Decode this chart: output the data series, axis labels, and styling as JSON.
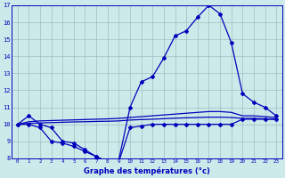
{
  "hours": [
    0,
    1,
    2,
    3,
    4,
    5,
    6,
    7,
    8,
    9,
    10,
    11,
    12,
    13,
    14,
    15,
    16,
    17,
    18,
    19,
    20,
    21,
    22,
    23
  ],
  "temp_actual": [
    10.0,
    10.5,
    10.0,
    9.8,
    9.0,
    8.9,
    8.5,
    8.1,
    7.8,
    7.9,
    11.0,
    12.5,
    12.8,
    13.9,
    15.2,
    15.5,
    16.3,
    17.0,
    16.5,
    14.8,
    11.8,
    11.3,
    11.0,
    10.5
  ],
  "temp_min": [
    10.0,
    10.0,
    9.8,
    9.0,
    8.9,
    8.7,
    8.4,
    8.1,
    7.8,
    7.8,
    9.8,
    9.9,
    10.0,
    10.0,
    10.0,
    10.0,
    10.0,
    10.0,
    10.0,
    10.0,
    10.3,
    10.3,
    10.3,
    10.3
  ],
  "trend_upper": [
    10.0,
    10.15,
    10.2,
    10.22,
    10.24,
    10.26,
    10.28,
    10.3,
    10.32,
    10.35,
    10.4,
    10.45,
    10.5,
    10.55,
    10.6,
    10.65,
    10.7,
    10.75,
    10.75,
    10.7,
    10.5,
    10.5,
    10.45,
    10.4
  ],
  "trend_lower": [
    10.0,
    10.05,
    10.08,
    10.1,
    10.12,
    10.14,
    10.15,
    10.17,
    10.18,
    10.2,
    10.25,
    10.28,
    10.3,
    10.33,
    10.36,
    10.38,
    10.4,
    10.42,
    10.42,
    10.4,
    10.35,
    10.35,
    10.32,
    10.3
  ],
  "background_color": "#cdeaea",
  "line_color": "#0000bb",
  "grid_color": "#9bbfbf",
  "xlabel": "Graphe des températures (°c)",
  "ylim": [
    8,
    17
  ],
  "xlim_min": -0.5,
  "xlim_max": 23.5
}
